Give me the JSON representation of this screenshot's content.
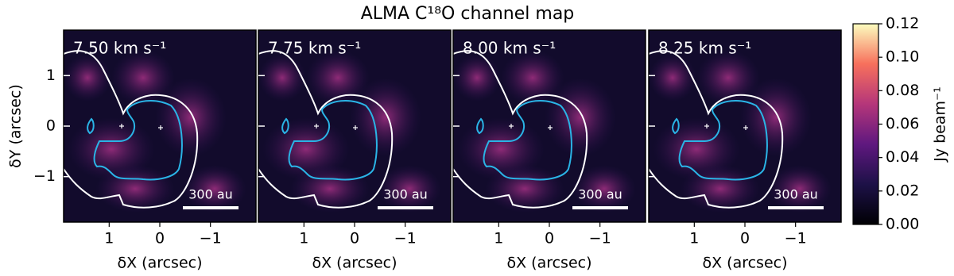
{
  "title": "ALMA C¹⁸O channel map",
  "chart_data": [
    {
      "type": "image",
      "title": "7.50 km s⁻¹",
      "xlabel": "δX (arcsec)",
      "ylabel": "δY (arcsec)",
      "xlim": [
        1.9,
        -1.9
      ],
      "ylim": [
        -1.9,
        1.9
      ],
      "xticks": [
        1,
        0,
        {
          "value": -1,
          "label": "−1"
        }
      ],
      "yticks": [
        {
          "value": -1,
          "label": "−1"
        },
        0,
        1
      ],
      "scalebar": "300 au"
    },
    {
      "type": "image",
      "title": "7.75 km s⁻¹",
      "xlabel": "δX (arcsec)",
      "xlim": [
        1.9,
        -1.9
      ],
      "ylim": [
        -1.9,
        1.9
      ],
      "xticks": [
        1,
        0,
        {
          "value": -1,
          "label": "−1"
        }
      ],
      "yticks": [
        -1,
        0,
        1
      ],
      "scalebar": "300 au"
    },
    {
      "type": "image",
      "title": "8.00 km s⁻¹",
      "xlabel": "δX (arcsec)",
      "xlim": [
        1.9,
        -1.9
      ],
      "ylim": [
        -1.9,
        1.9
      ],
      "xticks": [
        1,
        0,
        {
          "value": -1,
          "label": "−1"
        }
      ],
      "yticks": [
        -1,
        0,
        1
      ],
      "scalebar": "300 au"
    },
    {
      "type": "image",
      "title": "8.25 km s⁻¹",
      "xlabel": "δX (arcsec)",
      "xlim": [
        1.9,
        -1.9
      ],
      "ylim": [
        -1.9,
        1.9
      ],
      "xticks": [
        1,
        0,
        {
          "value": -1,
          "label": "−1"
        }
      ],
      "yticks": [
        -1,
        0,
        1
      ],
      "scalebar": "300 au"
    },
    {
      "type": "colorbar",
      "label": "Jy beam⁻¹",
      "ylim": [
        0,
        0.12
      ],
      "yticks": [
        {
          "value": 0,
          "label": "0.00"
        },
        {
          "value": 0.02,
          "label": "0.02"
        },
        {
          "value": 0.04,
          "label": "0.04"
        },
        {
          "value": 0.06,
          "label": "0.06"
        },
        {
          "value": 0.08,
          "label": "0.08"
        },
        {
          "value": 0.1,
          "label": "0.10"
        },
        {
          "value": 0.12,
          "label": "0.12"
        }
      ]
    }
  ]
}
